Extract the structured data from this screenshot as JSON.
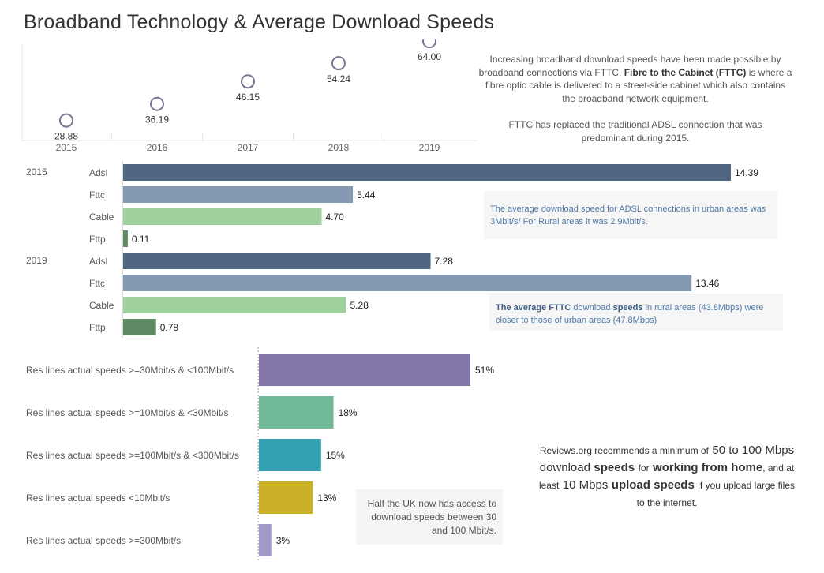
{
  "title": "Broadband Technology & Average Download Speeds",
  "chart_data": [
    {
      "type": "scatter",
      "x": [
        "2015",
        "2016",
        "2017",
        "2018",
        "2019"
      ],
      "values": [
        28.88,
        36.19,
        46.15,
        54.24,
        64.0
      ],
      "labels": [
        "28.88",
        "36.19",
        "46.15",
        "54.24",
        "64.00"
      ],
      "ylim": [
        20,
        70
      ],
      "grid": false,
      "colors": {
        "marker": "#7a7592"
      }
    },
    {
      "type": "bar",
      "orientation": "horizontal",
      "groups": [
        "2015",
        "2019"
      ],
      "categories": [
        "Adsl",
        "Fttc",
        "Cable",
        "Fttp"
      ],
      "series": [
        {
          "group": "2015",
          "values": [
            14.39,
            5.44,
            4.7,
            0.11
          ],
          "labels": [
            "14.39",
            "5.44",
            "4.70",
            "0.11"
          ]
        },
        {
          "group": "2019",
          "values": [
            7.28,
            13.46,
            5.28,
            0.78
          ],
          "labels": [
            "7.28",
            "13.46",
            "5.28",
            "0.78"
          ]
        }
      ],
      "xlim": [
        0,
        15
      ],
      "colors": {
        "Adsl": "#4f6680",
        "Fttc": "#8399b1",
        "Cable": "#9fcf9c",
        "Fttp": "#5d8a63"
      }
    },
    {
      "type": "bar",
      "orientation": "horizontal",
      "categories": [
        "Res lines actual speeds >=30Mbit/s & <100Mbit/s",
        "Res lines actual speeds >=10Mbit/s & <30Mbit/s",
        "Res lines actual speeds >=100Mbit/s & <300Mbit/s",
        "Res lines actual speeds <10Mbit/s",
        "Res lines actual speeds >=300Mbit/s"
      ],
      "values": [
        51,
        18,
        15,
        13,
        3
      ],
      "labels": [
        "51%",
        "18%",
        "15%",
        "13%",
        "3%"
      ],
      "xlim": [
        0,
        60
      ],
      "colors": [
        "#8476a9",
        "#72b99a",
        "#34a1b3",
        "#cbb129",
        "#a49ac8"
      ]
    }
  ],
  "notes": {
    "fttc_intro_1": "Increasing broadband download speeds have been made possible by broadband connections via FTTC.",
    "fttc_intro_bold": "Fibre to the Cabinet (FTTC)",
    "fttc_intro_2": "is where a fibre optic cable is delivered to a street-side cabinet which also contains the broadband network equipment.",
    "fttc_replaced": "FTTC has replaced the traditional ADSL connection that was predominant during 2015.",
    "adsl_note": "The average download speed for ADSL connections in urban areas was 3Mbit/s/ For Rural areas it was 2.9Mbit/s.",
    "fttc_note_bold1": "The average FTTC",
    "fttc_note_mid": "download",
    "fttc_note_bold2": "speeds",
    "fttc_note_rest": "in rural areas (43.8Mbps) were closer to those of urban areas (47.8Mbps)",
    "reco_1": "Reviews.org recommends  a minimum of",
    "reco_2": "50 to 100",
    "reco_3": "Mbps download",
    "reco_4": "speeds",
    "reco_5": "for",
    "reco_6": "working from home",
    "reco_7": ", and at least",
    "reco_8": "10 Mbps",
    "reco_9": "upload speeds",
    "reco_10": "if you upload large files to the internet.",
    "half_uk": "Half the UK now has access to download speeds between 30 and 100 Mbit/s."
  }
}
